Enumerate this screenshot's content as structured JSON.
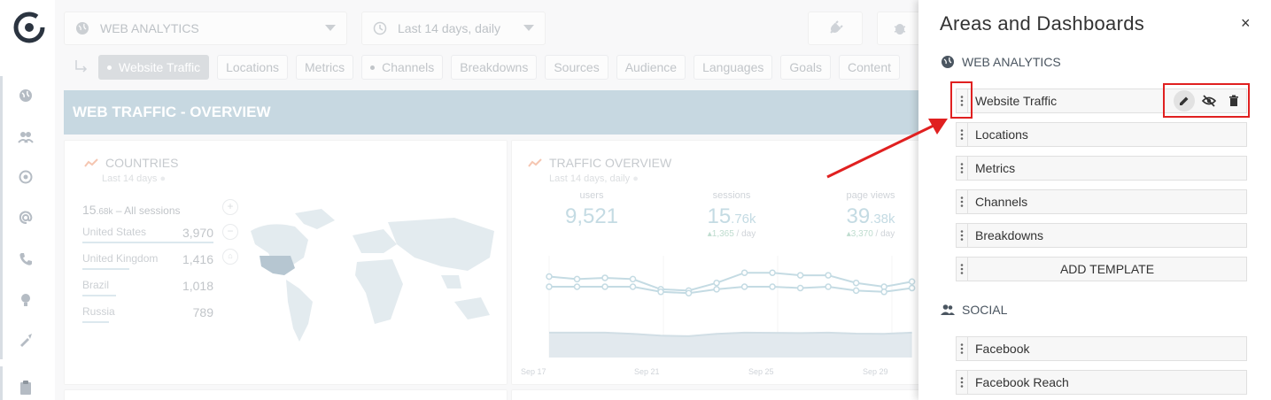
{
  "filters": {
    "area_select": "WEB ANALYTICS",
    "date_select": "Last 14 days, daily"
  },
  "tabs": [
    {
      "label": "Website Traffic",
      "active": true,
      "dot": true
    },
    {
      "label": "Locations",
      "active": false,
      "dot": false
    },
    {
      "label": "Metrics",
      "active": false,
      "dot": false
    },
    {
      "label": "Channels",
      "active": false,
      "dot": true
    },
    {
      "label": "Breakdowns",
      "active": false,
      "dot": false
    },
    {
      "label": "Sources",
      "active": false,
      "dot": false
    },
    {
      "label": "Audience",
      "active": false,
      "dot": false
    },
    {
      "label": "Languages",
      "active": false,
      "dot": false
    },
    {
      "label": "Goals",
      "active": false,
      "dot": false
    },
    {
      "label": "Content",
      "active": false,
      "dot": false
    }
  ],
  "banner": "WEB TRAFFIC - OVERVIEW",
  "countries_card": {
    "title": "COUNTRIES",
    "subtitle": "Last 14 days",
    "total_big": "15",
    "total_small": ".68k",
    "total_suffix": " – All sessions",
    "rows": [
      {
        "country": "United States",
        "value": "3,970",
        "share": 1.0
      },
      {
        "country": "United Kingdom",
        "value": "1,416",
        "share": 0.36
      },
      {
        "country": "Brazil",
        "value": "1,018",
        "share": 0.26
      },
      {
        "country": "Russia",
        "value": "789",
        "share": 0.2
      }
    ]
  },
  "traffic_card": {
    "title": "TRAFFIC OVERVIEW",
    "subtitle": "Last 14 days, daily",
    "metrics": [
      {
        "label": "users",
        "big": "9,521",
        "small": "",
        "delta": "",
        "per": ""
      },
      {
        "label": "sessions",
        "big": "15",
        "small": ".76k",
        "delta": "▴1,365",
        "per": " / day"
      },
      {
        "label": "page views",
        "big": "39",
        "small": ".38k",
        "delta": "▴3,370",
        "per": " / day"
      }
    ],
    "x_ticks": [
      "Sep 17",
      "Sep 21",
      "Sep 25",
      "Sep 29"
    ]
  },
  "chart_data": {
    "type": "line",
    "x": [
      "Sep 17",
      "Sep 18",
      "Sep 19",
      "Sep 20",
      "Sep 21",
      "Sep 22",
      "Sep 23",
      "Sep 24",
      "Sep 25",
      "Sep 26",
      "Sep 27",
      "Sep 28",
      "Sep 29",
      "Sep 30"
    ],
    "series": [
      {
        "values": [
          2900,
          2800,
          2850,
          2800,
          2400,
          2350,
          2650,
          3050,
          3050,
          2950,
          2950,
          2650,
          2500,
          2700
        ]
      },
      {
        "values": [
          2500,
          2500,
          2500,
          2500,
          2300,
          2250,
          2400,
          2500,
          2500,
          2450,
          2500,
          2350,
          2300,
          2450
        ]
      },
      {
        "values": [
          700,
          700,
          700,
          650,
          580,
          560,
          650,
          700,
          690,
          680,
          700,
          660,
          650,
          700
        ]
      }
    ]
  },
  "panel": {
    "title": "Areas and Dashboards",
    "close": "×",
    "sections": [
      {
        "title": "WEB ANALYTICS",
        "items": [
          "Website Traffic",
          "Locations",
          "Metrics",
          "Channels",
          "Breakdowns"
        ],
        "add": "ADD TEMPLATE"
      },
      {
        "title": "SOCIAL",
        "items": [
          "Facebook",
          "Facebook Reach"
        ]
      }
    ]
  },
  "colors": {
    "accent": "#e02020",
    "banner": "#a9c4d2",
    "line": "#a5c8d5"
  },
  "icons": [
    "globe-icon",
    "clock-icon",
    "plug-icon",
    "bug-icon",
    "pencil-icon",
    "eye-off-icon",
    "trash-icon",
    "drag-handle-icon",
    "users-icon"
  ]
}
